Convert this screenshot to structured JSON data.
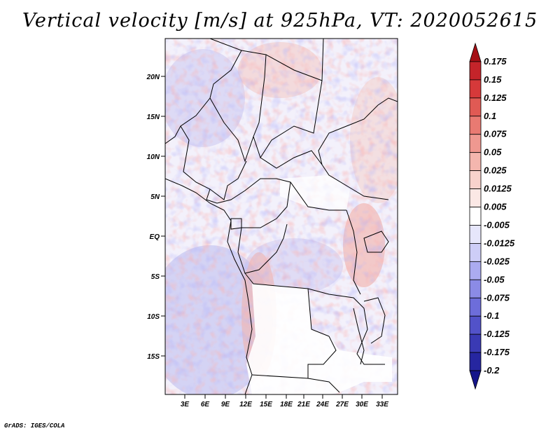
{
  "title": "Vertical velocity [m/s] at 925hPa, VT: 2020052615",
  "credit": "GrADS: IGES/COLA",
  "map": {
    "lat_labels": [
      "20N",
      "15N",
      "10N",
      "5N",
      "EQ",
      "5S",
      "10S",
      "15S"
    ],
    "lon_labels": [
      "3E",
      "6E",
      "9E",
      "12E",
      "15E",
      "18E",
      "21E",
      "24E",
      "27E",
      "30E",
      "33E"
    ],
    "lat_range": [
      -19.5,
      24.5
    ],
    "lon_range": [
      0.5,
      34.5
    ]
  },
  "colorbar": {
    "levels": [
      "0.175",
      "0.15",
      "0.125",
      "0.1",
      "0.075",
      "0.05",
      "0.025",
      "0.0125",
      "0.005",
      "-0.005",
      "-0.0125",
      "-0.025",
      "-0.05",
      "-0.075",
      "-0.1",
      "-0.125",
      "-0.175",
      "-0.2"
    ],
    "colors": [
      "#a50f15",
      "#c4242a",
      "#d6393a",
      "#e05a54",
      "#e97a72",
      "#ef9890",
      "#f4b6ae",
      "#f8d2cc",
      "#fbe8e5",
      "#ffffff",
      "#e6e6fb",
      "#cdcdf7",
      "#ababf0",
      "#8b8be6",
      "#6d6dda",
      "#5252c9",
      "#3a3ab4",
      "#2626a0",
      "#15158a"
    ]
  }
}
